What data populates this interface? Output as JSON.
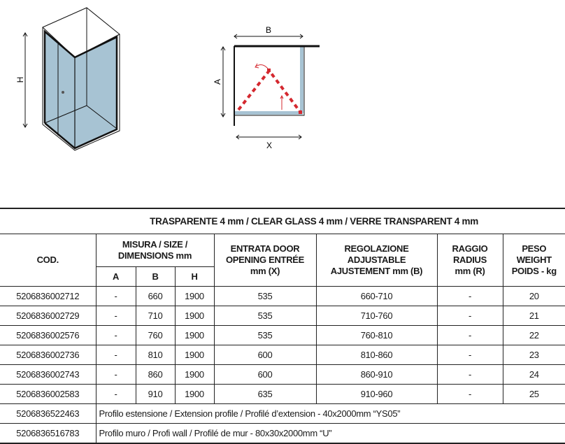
{
  "diagrams": {
    "enclosure_label_h": "H",
    "plan_label_b": "B",
    "plan_label_a": "A",
    "plan_label_x": "X",
    "glass_color": "#a7c3d3",
    "door_path_color": "#d4282f"
  },
  "table": {
    "title": "TRASPARENTE 4 mm / CLEAR GLASS 4 mm / VERRE TRANSPARENT 4 mm",
    "headers": {
      "cod": "COD.",
      "size": "MISURA / SIZE / DIMENSIONS mm",
      "a": "A",
      "b": "B",
      "h": "H",
      "entrata": "ENTRATA DOOR OPENING ENTRÉE mm (X)",
      "regolazione": "REGOLAZIONE ADJUSTABLE AJUSTEMENT mm (B)",
      "raggio": "RAGGIO RADIUS mm (R)",
      "peso": "PESO WEIGHT POIDS - kg"
    },
    "rows": [
      {
        "cod": "5206836002712",
        "a": "-",
        "b": "660",
        "h": "1900",
        "entrata": "535",
        "regolazione": "660-710",
        "raggio": "-",
        "peso": "20"
      },
      {
        "cod": "5206836002729",
        "a": "-",
        "b": "710",
        "h": "1900",
        "entrata": "535",
        "regolazione": "710-760",
        "raggio": "-",
        "peso": "21"
      },
      {
        "cod": "5206836002576",
        "a": "-",
        "b": "760",
        "h": "1900",
        "entrata": "535",
        "regolazione": "760-810",
        "raggio": "-",
        "peso": "22"
      },
      {
        "cod": "5206836002736",
        "a": "-",
        "b": "810",
        "h": "1900",
        "entrata": "600",
        "regolazione": "810-860",
        "raggio": "-",
        "peso": "23"
      },
      {
        "cod": "5206836002743",
        "a": "-",
        "b": "860",
        "h": "1900",
        "entrata": "600",
        "regolazione": "860-910",
        "raggio": "-",
        "peso": "24"
      },
      {
        "cod": "5206836002583",
        "a": "-",
        "b": "910",
        "h": "1900",
        "entrata": "635",
        "regolazione": "910-960",
        "raggio": "-",
        "peso": "25"
      }
    ],
    "accessories": [
      {
        "cod": "5206836522463",
        "desc": "Profilo estensione / Extension profile / Profilé d’extension - 40x2000mm “YS05”"
      },
      {
        "cod": "5206836516783",
        "desc": "Profilo muro / Profi wall / Profilé de mur - 80x30x2000mm “U”"
      }
    ]
  }
}
